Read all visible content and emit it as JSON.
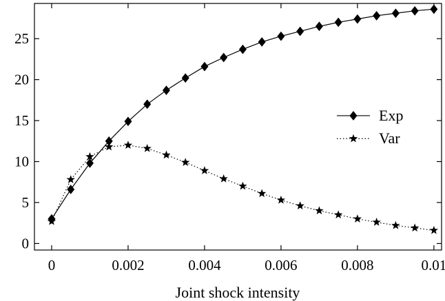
{
  "chart_data": {
    "type": "line",
    "title": "",
    "xlabel": "Joint shock intensity",
    "ylabel": "",
    "xlim": [
      -0.00045,
      0.0102
    ],
    "ylim": [
      -0.8,
      29.3
    ],
    "x_ticks": [
      0,
      0.002,
      0.004,
      0.006,
      0.008,
      0.01
    ],
    "x_tick_labels": [
      "0",
      "0.002",
      "0.004",
      "0.006",
      "0.008",
      "0.01"
    ],
    "y_ticks": [
      0,
      5,
      10,
      15,
      20,
      25
    ],
    "y_tick_labels": [
      "0",
      "5",
      "10",
      "15",
      "20",
      "25"
    ],
    "grid": false,
    "legend_position": "right",
    "x": [
      0,
      0.0005,
      0.001,
      0.0015,
      0.002,
      0.0025,
      0.003,
      0.0035,
      0.004,
      0.0045,
      0.005,
      0.0055,
      0.006,
      0.0065,
      0.007,
      0.0075,
      0.008,
      0.0085,
      0.009,
      0.0095,
      0.01
    ],
    "series": [
      {
        "name": "Exp",
        "marker": "diamond",
        "line": "solid",
        "color": "#000000",
        "values": [
          3.0,
          6.6,
          9.8,
          12.5,
          14.9,
          17.0,
          18.7,
          20.2,
          21.6,
          22.7,
          23.7,
          24.6,
          25.3,
          25.9,
          26.5,
          27.0,
          27.4,
          27.8,
          28.1,
          28.4,
          28.6
        ]
      },
      {
        "name": "Var",
        "marker": "star",
        "line": "dotted",
        "color": "#000000",
        "values": [
          2.7,
          7.8,
          10.6,
          11.8,
          12.0,
          11.6,
          10.8,
          9.9,
          8.9,
          7.9,
          7.0,
          6.1,
          5.3,
          4.6,
          4.0,
          3.5,
          3.0,
          2.6,
          2.2,
          1.9,
          1.6
        ]
      }
    ]
  }
}
